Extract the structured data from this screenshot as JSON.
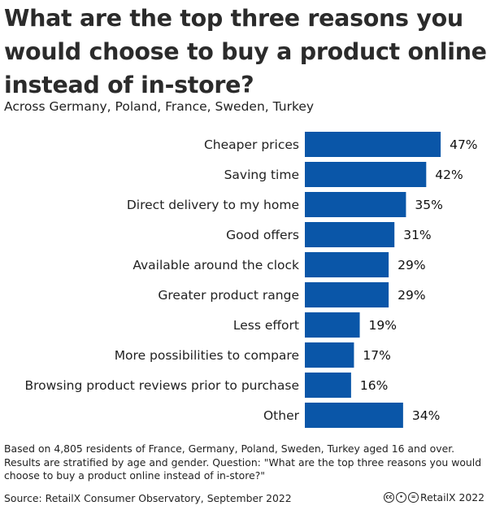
{
  "title": "What are the top three reasons you would choose to buy a product online instead of in-store?",
  "subtitle": "Across Germany, Poland, France, Sweden, Turkey",
  "chart_data": {
    "type": "bar",
    "orientation": "horizontal",
    "categories": [
      "Cheaper prices",
      "Saving time",
      "Direct delivery to my home",
      "Good offers",
      "Available around the clock",
      "Greater product range",
      "Less effort",
      "More possibilities to compare",
      "Browsing product reviews prior to purchase",
      "Other"
    ],
    "values": [
      47,
      42,
      35,
      31,
      29,
      29,
      19,
      17,
      16,
      34
    ],
    "value_labels": [
      "47%",
      "42%",
      "35%",
      "31%",
      "29%",
      "29%",
      "19%",
      "17%",
      "16%",
      "34%"
    ],
    "unit": "%",
    "bar_color": "#0a56a8",
    "grid": false,
    "legend": "none"
  },
  "note": "Based on 4,805 residents of France, Germany, Poland, Sweden, Turkey aged 16 and over. Results are stratified by age and gender. Question: \"What are the top three reasons you would choose to buy a product online instead of in-store?\"",
  "source": "Source: RetailX Consumer Observatory, September 2022",
  "credit": {
    "license_icons": [
      "cc-icon",
      "by-icon",
      "nd-icon"
    ],
    "text": "RetailX 2022"
  }
}
